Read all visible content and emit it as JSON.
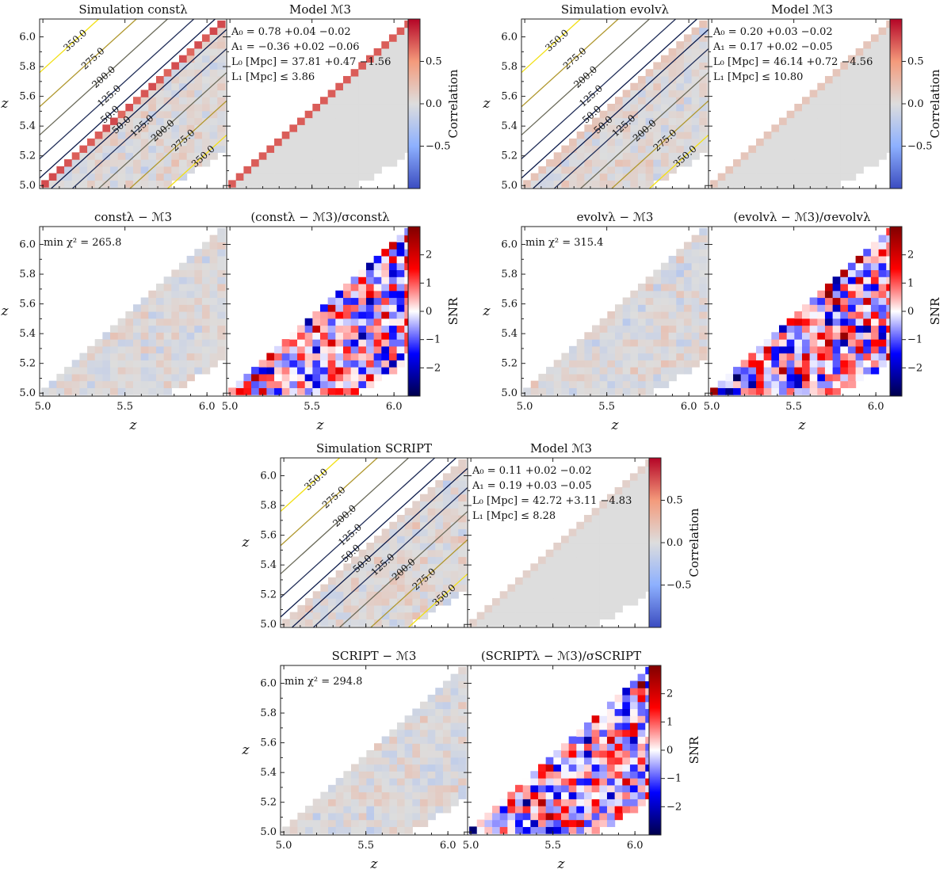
{
  "figure": {
    "z_range": [
      4.98,
      6.12
    ],
    "z_ticks": [
      "5.0",
      "5.2",
      "5.4",
      "5.6",
      "5.8",
      "6.0"
    ],
    "x_ticks": [
      "5.0",
      "5.5",
      "6.0"
    ],
    "axis_label": "z",
    "corr_colorbar": {
      "label": "Correlation",
      "range": [
        -1,
        1
      ],
      "ticks": [
        "0.5",
        "0.0",
        "−0.5"
      ]
    },
    "snr_colorbar": {
      "label": "SNR",
      "range": [
        -3,
        3
      ],
      "ticks": [
        "2",
        "1",
        "0",
        "−1",
        "−2"
      ]
    },
    "contour_levels": [
      "350.0",
      "275.0",
      "200.0",
      "125.0",
      "50.0"
    ]
  },
  "chart_data": [
    {
      "type": "heatmap",
      "title": "Simulation constλ",
      "xlabel": "",
      "ylabel": "z",
      "quantity": "correlation",
      "contour_label_list": [
        "350.0",
        "275.0",
        "200.0",
        "125.0",
        "50.0",
        "50.0",
        "125.0",
        "200.0",
        "275.0",
        "350.0"
      ]
    },
    {
      "type": "heatmap",
      "title": "Model ℳ3",
      "quantity": "correlation",
      "annotations": [
        "A₀ = 0.78 +0.04 −0.02",
        "A₁ = −0.36 +0.02 −0.06",
        "L₀ [Mpc] = 37.81 +0.47 −1.56",
        "L₁ [Mpc] ≤ 3.86"
      ]
    },
    {
      "type": "heatmap",
      "title": "Simulation evolvλ",
      "quantity": "correlation",
      "contour_label_list": [
        "350.0",
        "275.0",
        "200.0",
        "125.0",
        "50.0",
        "50.0",
        "125.0",
        "200.0",
        "275.0",
        "350.0"
      ]
    },
    {
      "type": "heatmap",
      "title": "Model ℳ3",
      "quantity": "correlation",
      "annotations": [
        "A₀ = 0.20 +0.03 −0.02",
        "A₁ = 0.17 +0.02 −0.05",
        "L₀ [Mpc] = 46.14 +0.72 −4.56",
        "L₁ [Mpc] ≤ 10.80"
      ]
    },
    {
      "type": "heatmap",
      "title": "constλ − ℳ3",
      "xlabel": "z",
      "ylabel": "z",
      "quantity": "residual",
      "annotation": "min χ² = 265.8"
    },
    {
      "type": "heatmap",
      "title": "(constλ − ℳ3)/σconstλ",
      "xlabel": "z",
      "quantity": "snr"
    },
    {
      "type": "heatmap",
      "title": "evolvλ − ℳ3",
      "xlabel": "z",
      "quantity": "residual",
      "annotation": "min χ² = 315.4"
    },
    {
      "type": "heatmap",
      "title": "(evolvλ − ℳ3)/σevolvλ",
      "xlabel": "z",
      "quantity": "snr"
    },
    {
      "type": "heatmap",
      "title": "Simulation SCRIPT",
      "ylabel": "z",
      "quantity": "correlation",
      "contour_label_list": [
        "350.0",
        "275.0",
        "200.0",
        "125.0",
        "50.0",
        "50.0",
        "125.0",
        "200.0",
        "275.0",
        "350.0"
      ]
    },
    {
      "type": "heatmap",
      "title": "Model ℳ3",
      "quantity": "correlation",
      "annotations": [
        "A₀ = 0.11 +0.02 −0.02",
        "A₁ = 0.19 +0.03 −0.05",
        "L₀ [Mpc] = 42.72 +3.11 −4.83",
        "L₁ [Mpc] ≤ 8.28"
      ]
    },
    {
      "type": "heatmap",
      "title": "SCRIPT − ℳ3",
      "xlabel": "z",
      "ylabel": "z",
      "quantity": "residual",
      "annotation": "min χ² = 294.8"
    },
    {
      "type": "heatmap",
      "title": "(SCRIPTλ − ℳ3)/σSCRIPT",
      "xlabel": "z",
      "quantity": "snr"
    }
  ]
}
